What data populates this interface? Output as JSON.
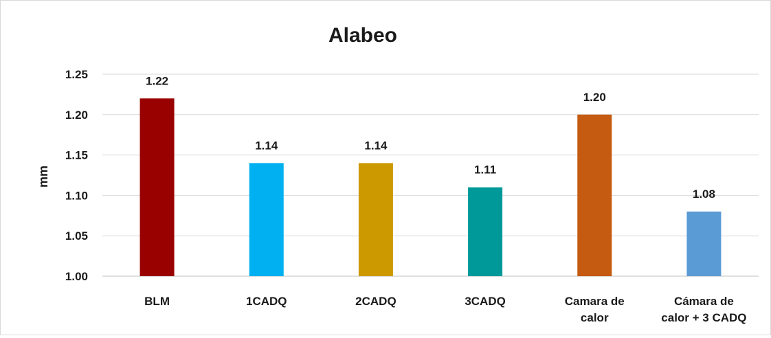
{
  "chart_data": {
    "type": "bar",
    "title": "Alabeo",
    "xlabel": "",
    "ylabel": "mm",
    "ylim": [
      1.0,
      1.25
    ],
    "yticks": [
      "1.00",
      "1.05",
      "1.10",
      "1.15",
      "1.20",
      "1.25"
    ],
    "grid": true,
    "categories": [
      [
        "BLM"
      ],
      [
        "1CADQ"
      ],
      [
        "2CADQ"
      ],
      [
        "3CADQ"
      ],
      [
        "Camara de",
        "calor"
      ],
      [
        "Cámara de",
        "calor + 3 CADQ"
      ]
    ],
    "values": [
      1.22,
      1.14,
      1.14,
      1.11,
      1.2,
      1.08
    ],
    "data_labels": [
      "1.22",
      "1.14",
      "1.14",
      "1.11",
      "1.20",
      "1.08"
    ],
    "colors": [
      "#990000",
      "#00B0F0",
      "#CC9900",
      "#009999",
      "#C55A11",
      "#5B9BD5"
    ]
  }
}
